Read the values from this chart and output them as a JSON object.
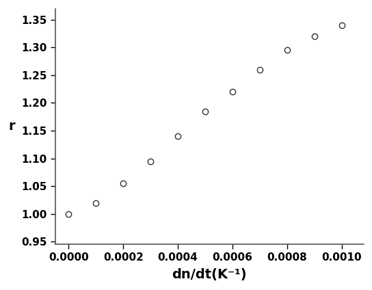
{
  "x": [
    0.0,
    0.0001,
    0.0002,
    0.0003,
    0.0004,
    0.0005,
    0.0006,
    0.0007,
    0.0008,
    0.0009,
    0.001
  ],
  "y": [
    1.0,
    1.02,
    1.055,
    1.095,
    1.14,
    1.185,
    1.22,
    1.26,
    1.295,
    1.32,
    1.34
  ],
  "xlabel": "dn/dt(K⁻¹)",
  "ylabel": "r",
  "xlim": [
    -5e-05,
    0.00108
  ],
  "ylim": [
    0.945,
    1.37
  ],
  "xticks": [
    0.0,
    0.0002,
    0.0004,
    0.0006,
    0.0008,
    0.001
  ],
  "yticks": [
    0.95,
    1.0,
    1.05,
    1.1,
    1.15,
    1.2,
    1.25,
    1.3,
    1.35
  ],
  "marker": "o",
  "marker_size": 6,
  "marker_facecolor": "white",
  "marker_edgecolor": "#333333",
  "marker_linewidth": 1.0,
  "bg_color": "#ffffff",
  "spine_color": "#555555",
  "tick_fontsize": 11,
  "label_fontsize": 14
}
